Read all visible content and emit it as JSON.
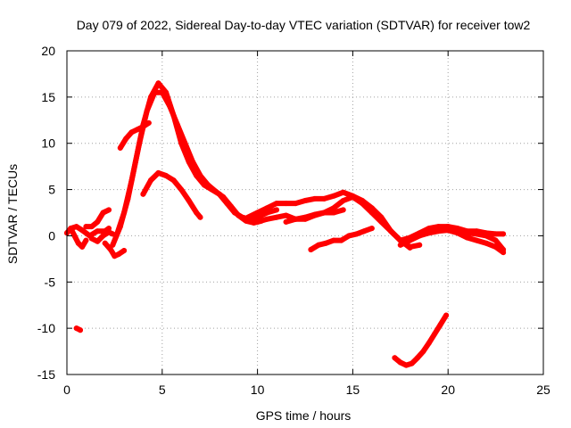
{
  "chart_data": {
    "type": "scatter",
    "title": "Day 079 of 2022, Sidereal Day-to-day VTEC variation (SDTVAR) for receiver tow2",
    "xlabel": "GPS time / hours",
    "ylabel": "SDTVAR / TECUs",
    "xlim": [
      0,
      25
    ],
    "ylim": [
      -15,
      20
    ],
    "xticks": [
      0,
      5,
      10,
      15,
      20,
      25
    ],
    "yticks": [
      -15,
      -10,
      -5,
      0,
      5,
      10,
      15,
      20
    ],
    "xtick_labels": [
      "0",
      "5",
      "10",
      "15",
      "20",
      "25"
    ],
    "ytick_labels": [
      "-15",
      "-10",
      "-5",
      "0",
      "5",
      "10",
      "15",
      "20"
    ],
    "grid": true,
    "legend": "none",
    "series_color": "#ff0000",
    "series": [
      {
        "name": "arc-early-1",
        "x": [
          0.0,
          0.2,
          0.4,
          0.6,
          0.8,
          1.0
        ],
        "y": [
          0.3,
          0.8,
          0.0,
          -0.8,
          -1.2,
          -0.5
        ]
      },
      {
        "name": "arc-early-2",
        "x": [
          0.2,
          0.5,
          0.8,
          1.2,
          1.6,
          2.0,
          2.2
        ],
        "y": [
          0.8,
          1.0,
          0.6,
          0.0,
          0.5,
          0.5,
          0.8
        ]
      },
      {
        "name": "arc-early-3",
        "x": [
          1.0,
          1.3,
          1.6,
          1.9,
          2.2
        ],
        "y": [
          1.0,
          1.0,
          1.5,
          2.5,
          2.8
        ]
      },
      {
        "name": "arc-early-4",
        "x": [
          1.3,
          1.6,
          1.9,
          2.2,
          2.4
        ],
        "y": [
          -0.3,
          -0.6,
          0.0,
          0.4,
          0.2
        ]
      },
      {
        "name": "arc-dip",
        "x": [
          2.0,
          2.3,
          2.5,
          2.7,
          3.0
        ],
        "y": [
          -0.8,
          -1.5,
          -2.2,
          -2.0,
          -1.6
        ]
      },
      {
        "name": "arc-isolated",
        "x": [
          0.5,
          0.7
        ],
        "y": [
          -10.0,
          -10.2
        ]
      },
      {
        "name": "arc-main-1",
        "x": [
          2.4,
          2.8,
          3.2,
          3.6,
          4.0,
          4.4,
          4.8,
          5.2,
          5.6,
          6.0,
          6.4,
          6.8,
          7.2,
          7.6,
          8.0,
          8.4,
          8.8,
          9.2,
          9.6,
          10.0,
          10.5,
          11.0
        ],
        "y": [
          -1.0,
          1.0,
          4.0,
          8.0,
          12.0,
          15.0,
          16.5,
          15.5,
          13.0,
          10.0,
          8.0,
          6.5,
          5.5,
          5.0,
          4.5,
          3.5,
          2.5,
          2.0,
          1.8,
          2.0,
          2.5,
          2.8
        ]
      },
      {
        "name": "arc-main-2",
        "x": [
          2.6,
          3.0,
          3.4,
          3.8,
          4.2,
          4.6,
          5.0,
          5.4,
          5.8,
          6.2,
          6.6,
          7.0,
          7.4,
          7.8,
          8.2,
          8.6,
          9.0,
          9.4,
          9.8,
          10.2
        ],
        "y": [
          0.0,
          2.5,
          6.0,
          10.0,
          13.5,
          15.5,
          15.5,
          14.0,
          12.0,
          10.0,
          8.0,
          6.5,
          5.5,
          4.8,
          4.2,
          3.2,
          2.2,
          1.6,
          1.4,
          1.6
        ]
      },
      {
        "name": "arc-plateau",
        "x": [
          2.8,
          3.1,
          3.4,
          3.7,
          4.0,
          4.3
        ],
        "y": [
          9.5,
          10.5,
          11.2,
          11.5,
          11.8,
          12.2
        ]
      },
      {
        "name": "arc-secondary",
        "x": [
          4.0,
          4.4,
          4.8,
          5.2,
          5.6,
          6.0,
          6.4,
          6.8,
          7.0
        ],
        "y": [
          4.5,
          6.0,
          6.8,
          6.5,
          6.0,
          5.0,
          3.8,
          2.5,
          2.0
        ]
      },
      {
        "name": "arc-mid-1",
        "x": [
          9.5,
          10.0,
          10.5,
          11.0,
          11.5,
          12.0,
          12.5,
          13.0,
          13.5,
          14.0,
          14.5,
          15.0,
          15.5,
          16.0,
          16.5,
          17.0,
          17.5,
          18.0,
          18.5
        ],
        "y": [
          2.0,
          2.5,
          3.0,
          3.5,
          3.5,
          3.5,
          3.8,
          4.0,
          4.0,
          4.3,
          4.7,
          4.3,
          3.8,
          3.0,
          2.0,
          0.5,
          -0.5,
          -1.2,
          -1.0
        ]
      },
      {
        "name": "arc-mid-2",
        "x": [
          10.0,
          10.5,
          11.0,
          11.5,
          12.0,
          12.5,
          13.0,
          13.5,
          14.0,
          14.5,
          15.0,
          15.5,
          16.0,
          16.5,
          17.0,
          17.5,
          18.0
        ],
        "y": [
          1.5,
          1.8,
          2.0,
          2.2,
          1.8,
          1.8,
          2.2,
          2.5,
          3.0,
          3.8,
          4.2,
          3.5,
          2.5,
          1.5,
          0.5,
          -0.5,
          -1.3
        ]
      },
      {
        "name": "arc-mid-3",
        "x": [
          11.5,
          12.0,
          12.5,
          13.0,
          13.5,
          14.0,
          14.5
        ],
        "y": [
          1.5,
          1.8,
          2.0,
          2.3,
          2.5,
          2.5,
          2.8
        ]
      },
      {
        "name": "arc-neg",
        "x": [
          12.8,
          13.2,
          13.6,
          14.0,
          14.4,
          14.8,
          15.2,
          15.6,
          16.0
        ],
        "y": [
          -1.5,
          -1.0,
          -0.8,
          -0.5,
          -0.5,
          0.0,
          0.2,
          0.5,
          0.8
        ]
      },
      {
        "name": "arc-late-1",
        "x": [
          17.5,
          18.0,
          18.5,
          19.0,
          19.5,
          20.0,
          20.5,
          21.0,
          21.5,
          22.0,
          22.5,
          22.9
        ],
        "y": [
          -0.5,
          -0.2,
          0.3,
          0.8,
          1.0,
          1.0,
          0.7,
          0.3,
          0.2,
          0.0,
          -0.5,
          -1.5
        ]
      },
      {
        "name": "arc-late-2",
        "x": [
          17.5,
          18.0,
          18.5,
          19.0,
          19.5,
          20.0,
          20.5,
          21.0,
          21.5,
          22.0,
          22.5,
          22.9
        ],
        "y": [
          -1.0,
          -0.5,
          0.0,
          0.3,
          0.5,
          0.6,
          0.3,
          -0.2,
          -0.5,
          -0.8,
          -1.2,
          -1.8
        ]
      },
      {
        "name": "arc-late-3",
        "x": [
          18.5,
          19.0,
          19.5,
          20.0,
          20.5,
          21.0,
          21.5,
          22.0,
          22.5,
          22.9
        ],
        "y": [
          0.0,
          0.5,
          0.8,
          1.0,
          0.8,
          0.5,
          0.5,
          0.3,
          0.2,
          0.2
        ]
      },
      {
        "name": "arc-bottom",
        "x": [
          17.2,
          17.5,
          17.8,
          18.1,
          18.4,
          18.7,
          19.0,
          19.3,
          19.6,
          19.9
        ],
        "y": [
          -13.2,
          -13.7,
          -14.0,
          -13.8,
          -13.2,
          -12.5,
          -11.6,
          -10.6,
          -9.6,
          -8.6
        ]
      }
    ]
  }
}
